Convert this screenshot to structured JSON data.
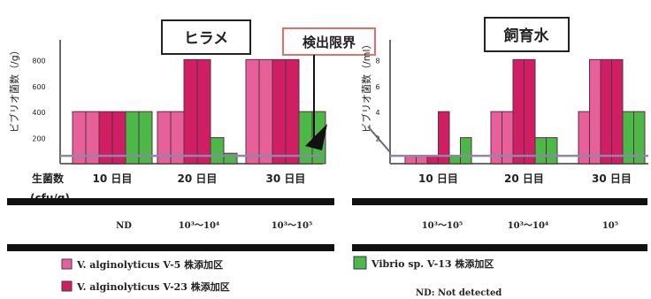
{
  "colors": {
    "vs5": "#e8609a",
    "v23": "#cf1e63",
    "v13": "#4cb848",
    "detect_box": "#e07070",
    "bar_stroke": "#5a3040",
    "axis": "#6a6a6a",
    "threshold_line": "#8a8aa8"
  },
  "chart_data": [
    {
      "type": "bar",
      "title": "ヒラメ",
      "ylabel": "ビブリオ菌数（/g）",
      "categories": [
        "10 日目",
        "20 日目",
        "30 日目"
      ],
      "yticks": [
        "200",
        "400",
        "600",
        "800"
      ],
      "ylim": [
        0,
        850
      ],
      "detection_limit": 60,
      "series": [
        {
          "name": "V. alginolyticus V-5 株添加区",
          "values": [
            [
              400,
              400
            ],
            [
              400,
              400
            ],
            [
              800,
              800
            ]
          ]
        },
        {
          "name": "V. alginolyticus V-23 株添加区",
          "values": [
            [
              400,
              400
            ],
            [
              800,
              800
            ],
            [
              800,
              800
            ]
          ]
        },
        {
          "name": "Vibrio sp. V-13 株添加区",
          "values": [
            [
              400,
              400
            ],
            [
              200,
              80
            ],
            [
              400,
              400
            ]
          ]
        }
      ]
    },
    {
      "type": "bar",
      "title": "飼育水",
      "ylabel": "ビブリオ菌数（/ml）",
      "categories": [
        "10 日目",
        "20 日目",
        "30 日目"
      ],
      "yticks": [
        "2",
        "4",
        "6",
        "8"
      ],
      "ylim": [
        0,
        8.5
      ],
      "detection_limit": 0.6,
      "series": [
        {
          "name": "V. alginolyticus V-5 株添加区",
          "values": [
            [
              0.6,
              0.6
            ],
            [
              4,
              4
            ],
            [
              4,
              8
            ]
          ]
        },
        {
          "name": "V. alginolyticus V-23 株添加区",
          "values": [
            [
              0.6,
              4
            ],
            [
              8,
              8
            ],
            [
              8,
              8
            ]
          ]
        },
        {
          "name": "Vibrio sp. V-13 株添加区",
          "values": [
            [
              0.6,
              2
            ],
            [
              2,
              2
            ],
            [
              4,
              4
            ]
          ]
        }
      ]
    }
  ],
  "annotation": "検出限界",
  "live_bacteria": {
    "label": "生菌数",
    "unit": "(cfu/g)",
    "values": [
      "ND",
      "10³〜10⁴",
      "10³〜10⁵",
      "10³〜10⁵",
      "10³〜10⁴",
      "10⁵"
    ]
  },
  "legend": [
    {
      "label": "V. alginolyticus V-5 株添加区"
    },
    {
      "label": "V. alginolyticus V-23 株添加区"
    },
    {
      "label": "Vibrio sp. V-13 株添加区"
    }
  ],
  "footnote": "ND: Not detected"
}
